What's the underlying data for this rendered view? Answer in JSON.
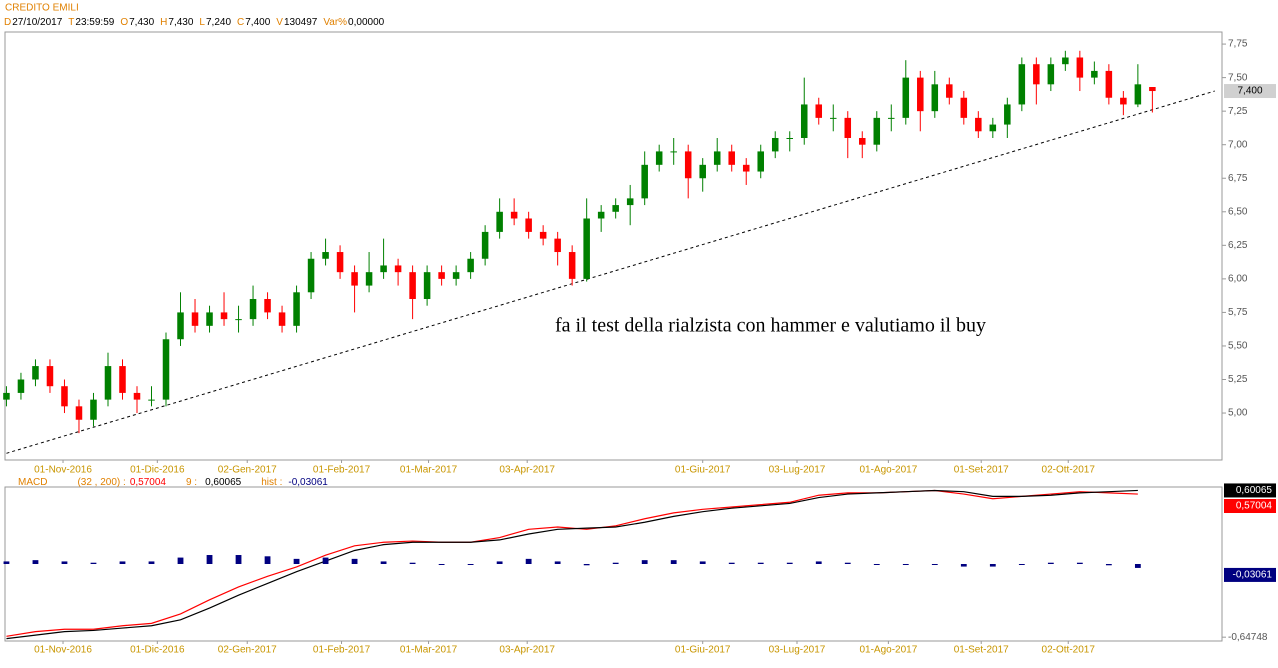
{
  "header": {
    "name": "CREDITO EMILI",
    "fields": [
      {
        "key": "D",
        "text": "27/10/2017"
      },
      {
        "key": "T",
        "text": "23:59:59"
      },
      {
        "key": "O",
        "text": "7,430"
      },
      {
        "key": "H",
        "text": "7,430"
      },
      {
        "key": "L",
        "text": "7,240"
      },
      {
        "key": "C",
        "text": "7,400"
      },
      {
        "key": "V",
        "text": "130497"
      },
      {
        "key": "Var%",
        "text": "0,00000"
      }
    ]
  },
  "chart_data": [
    {
      "type": "candlestick",
      "up_color": "#008000",
      "down_color": "#ff0000",
      "ylim": [
        4.65,
        7.84
      ],
      "xlim": [
        -0.1,
        83.8
      ],
      "yticks": [
        {
          "value": 5,
          "label": "5,00"
        },
        {
          "value": 5.25,
          "label": "5,25"
        },
        {
          "value": 5.5,
          "label": "5,50"
        },
        {
          "value": 5.75,
          "label": "5,75"
        },
        {
          "value": 6,
          "label": "6,00"
        },
        {
          "value": 6.25,
          "label": "6,25"
        },
        {
          "value": 6.5,
          "label": "6,50"
        },
        {
          "value": 6.75,
          "label": "6,75"
        },
        {
          "value": 7,
          "label": "7,00"
        },
        {
          "value": 7.25,
          "label": "7,25"
        },
        {
          "value": 7.5,
          "label": "7,50"
        },
        {
          "value": 7.75,
          "label": "7,75"
        }
      ],
      "xticks": [
        {
          "value": 3.9,
          "label": "01-Nov-2016"
        },
        {
          "value": 10.4,
          "label": "01-Dic-2016"
        },
        {
          "value": 16.6,
          "label": "02-Gen-2017"
        },
        {
          "value": 23.1,
          "label": "01-Feb-2017"
        },
        {
          "value": 29.1,
          "label": "01-Mar-2017"
        },
        {
          "value": 35.9,
          "label": "03-Apr-2017"
        },
        {
          "value": 48.0,
          "label": "01-Giu-2017"
        },
        {
          "value": 54.5,
          "label": "03-Lug-2017"
        },
        {
          "value": 60.8,
          "label": "01-Ago-2017"
        },
        {
          "value": 67.2,
          "label": "01-Set-2017"
        },
        {
          "value": 73.2,
          "label": "02-Ott-2017"
        }
      ],
      "candles": [
        [
          5.1,
          5.2,
          5.05,
          5.15
        ],
        [
          5.15,
          5.3,
          5.1,
          5.25
        ],
        [
          5.25,
          5.4,
          5.2,
          5.35
        ],
        [
          5.35,
          5.4,
          5.15,
          5.2
        ],
        [
          5.2,
          5.25,
          5.0,
          5.05
        ],
        [
          5.05,
          5.1,
          4.85,
          4.95
        ],
        [
          4.95,
          5.15,
          4.9,
          5.1
        ],
        [
          5.1,
          5.45,
          5.05,
          5.35
        ],
        [
          5.35,
          5.4,
          5.1,
          5.15
        ],
        [
          5.15,
          5.2,
          5.0,
          5.1
        ],
        [
          5.1,
          5.2,
          5.05,
          5.1
        ],
        [
          5.1,
          5.6,
          5.05,
          5.55
        ],
        [
          5.55,
          5.9,
          5.5,
          5.75
        ],
        [
          5.75,
          5.85,
          5.6,
          5.65
        ],
        [
          5.65,
          5.8,
          5.6,
          5.75
        ],
        [
          5.75,
          5.9,
          5.65,
          5.7
        ],
        [
          5.7,
          5.8,
          5.6,
          5.7
        ],
        [
          5.7,
          5.95,
          5.65,
          5.85
        ],
        [
          5.85,
          5.9,
          5.7,
          5.75
        ],
        [
          5.75,
          5.8,
          5.6,
          5.65
        ],
        [
          5.65,
          5.95,
          5.6,
          5.9
        ],
        [
          5.9,
          6.2,
          5.85,
          6.15
        ],
        [
          6.15,
          6.3,
          6.1,
          6.2
        ],
        [
          6.2,
          6.25,
          6.0,
          6.05
        ],
        [
          6.05,
          6.1,
          5.75,
          5.95
        ],
        [
          5.95,
          6.2,
          5.9,
          6.05
        ],
        [
          6.05,
          6.3,
          6.0,
          6.1
        ],
        [
          6.1,
          6.15,
          5.95,
          6.05
        ],
        [
          6.05,
          6.1,
          5.7,
          5.85
        ],
        [
          5.85,
          6.1,
          5.8,
          6.05
        ],
        [
          6.05,
          6.1,
          5.95,
          6.0
        ],
        [
          6.0,
          6.1,
          5.95,
          6.05
        ],
        [
          6.05,
          6.2,
          6.0,
          6.15
        ],
        [
          6.15,
          6.4,
          6.1,
          6.35
        ],
        [
          6.35,
          6.6,
          6.3,
          6.5
        ],
        [
          6.5,
          6.6,
          6.4,
          6.45
        ],
        [
          6.45,
          6.5,
          6.3,
          6.35
        ],
        [
          6.35,
          6.4,
          6.25,
          6.3
        ],
        [
          6.3,
          6.35,
          6.1,
          6.2
        ],
        [
          6.2,
          6.25,
          5.95,
          6.0
        ],
        [
          6.0,
          6.6,
          5.98,
          6.45
        ],
        [
          6.45,
          6.55,
          6.35,
          6.5
        ],
        [
          6.5,
          6.6,
          6.45,
          6.55
        ],
        [
          6.55,
          6.7,
          6.4,
          6.6
        ],
        [
          6.6,
          6.95,
          6.55,
          6.85
        ],
        [
          6.85,
          7.0,
          6.8,
          6.95
        ],
        [
          6.95,
          7.05,
          6.85,
          6.95
        ],
        [
          6.95,
          7.0,
          6.6,
          6.75
        ],
        [
          6.75,
          6.9,
          6.65,
          6.85
        ],
        [
          6.85,
          7.05,
          6.8,
          6.95
        ],
        [
          6.95,
          7.0,
          6.8,
          6.85
        ],
        [
          6.85,
          6.9,
          6.7,
          6.8
        ],
        [
          6.8,
          7.0,
          6.75,
          6.95
        ],
        [
          6.95,
          7.1,
          6.9,
          7.05
        ],
        [
          7.05,
          7.1,
          6.95,
          7.05
        ],
        [
          7.05,
          7.5,
          7.0,
          7.3
        ],
        [
          7.3,
          7.35,
          7.15,
          7.2
        ],
        [
          7.2,
          7.3,
          7.1,
          7.2
        ],
        [
          7.2,
          7.25,
          6.9,
          7.05
        ],
        [
          7.05,
          7.1,
          6.9,
          7.0
        ],
        [
          7.0,
          7.25,
          6.95,
          7.2
        ],
        [
          7.2,
          7.3,
          7.1,
          7.2
        ],
        [
          7.2,
          7.63,
          7.15,
          7.5
        ],
        [
          7.5,
          7.55,
          7.1,
          7.25
        ],
        [
          7.25,
          7.55,
          7.2,
          7.45
        ],
        [
          7.45,
          7.5,
          7.3,
          7.35
        ],
        [
          7.35,
          7.4,
          7.15,
          7.2
        ],
        [
          7.2,
          7.25,
          7.05,
          7.1
        ],
        [
          7.1,
          7.2,
          7.05,
          7.15
        ],
        [
          7.15,
          7.35,
          7.05,
          7.3
        ],
        [
          7.3,
          7.65,
          7.25,
          7.6
        ],
        [
          7.6,
          7.65,
          7.3,
          7.45
        ],
        [
          7.45,
          7.65,
          7.4,
          7.6
        ],
        [
          7.6,
          7.7,
          7.55,
          7.65
        ],
        [
          7.65,
          7.7,
          7.4,
          7.5
        ],
        [
          7.5,
          7.62,
          7.45,
          7.55
        ],
        [
          7.55,
          7.6,
          7.3,
          7.35
        ],
        [
          7.35,
          7.4,
          7.22,
          7.3
        ],
        [
          7.3,
          7.6,
          7.28,
          7.45
        ],
        [
          7.43,
          7.43,
          7.24,
          7.4
        ]
      ],
      "price_tag": {
        "value": 7.4,
        "label": "7,400"
      },
      "trendline": {
        "x": [
          0,
          83.3
        ],
        "y": [
          4.7,
          7.4
        ]
      },
      "annotation": "fa il test della rialzista con hammer e valutiamo il buy"
    },
    {
      "type": "macd",
      "title": "MACD",
      "params_label": "(32 , 200) :",
      "signal_label": "9 :",
      "hist_label": "hist :",
      "ylim": [
        -0.68,
        0.63
      ],
      "y2lim": [
        -0.6,
        0.6
      ],
      "xlim": [
        -0.1,
        83.8
      ],
      "yticks": [
        {
          "value": -0.64748,
          "label": "-0,64748"
        }
      ],
      "x": [
        0,
        2,
        4,
        6,
        8,
        10,
        12,
        14,
        16,
        18,
        20,
        22,
        24,
        26,
        28,
        30,
        32,
        34,
        36,
        38,
        40,
        42,
        44,
        46,
        48,
        50,
        52,
        54,
        56,
        58,
        60,
        62,
        64,
        66,
        68,
        70,
        72,
        74,
        76,
        78
      ],
      "series": [
        {
          "name": "MACD",
          "color": "#ff0000",
          "values": [
            -0.64,
            -0.6,
            -0.58,
            -0.58,
            -0.55,
            -0.53,
            -0.45,
            -0.33,
            -0.22,
            -0.13,
            -0.05,
            0.05,
            0.13,
            0.16,
            0.17,
            0.16,
            0.16,
            0.2,
            0.27,
            0.29,
            0.27,
            0.3,
            0.36,
            0.41,
            0.44,
            0.46,
            0.48,
            0.5,
            0.56,
            0.58,
            0.58,
            0.59,
            0.6,
            0.57,
            0.53,
            0.55,
            0.57,
            0.59,
            0.58,
            0.57004
          ],
          "last_label": "0,57004"
        },
        {
          "name": "signal",
          "color": "#000000",
          "values": [
            -0.66,
            -0.63,
            -0.6,
            -0.59,
            -0.57,
            -0.55,
            -0.5,
            -0.4,
            -0.29,
            -0.19,
            -0.09,
            0.0,
            0.09,
            0.14,
            0.16,
            0.16,
            0.16,
            0.18,
            0.23,
            0.27,
            0.28,
            0.29,
            0.33,
            0.38,
            0.42,
            0.45,
            0.47,
            0.49,
            0.54,
            0.57,
            0.58,
            0.59,
            0.6,
            0.59,
            0.55,
            0.55,
            0.56,
            0.58,
            0.59,
            0.60065
          ],
          "last_label": "0,60065"
        },
        {
          "name": "hist",
          "color": "#000080",
          "axis": "y2",
          "values": [
            0.02,
            0.03,
            0.02,
            0.01,
            0.02,
            0.02,
            0.05,
            0.07,
            0.07,
            0.06,
            0.04,
            0.05,
            0.04,
            0.02,
            0.01,
            0,
            0,
            0.02,
            0.04,
            0.02,
            -0.01,
            0.01,
            0.03,
            0.03,
            0.02,
            0.01,
            0.01,
            0.01,
            0.02,
            0.01,
            0,
            0,
            0,
            -0.02,
            -0.02,
            0,
            0.01,
            0.01,
            -0.01,
            -0.03061
          ],
          "last_label": "-0,03061"
        }
      ]
    }
  ]
}
